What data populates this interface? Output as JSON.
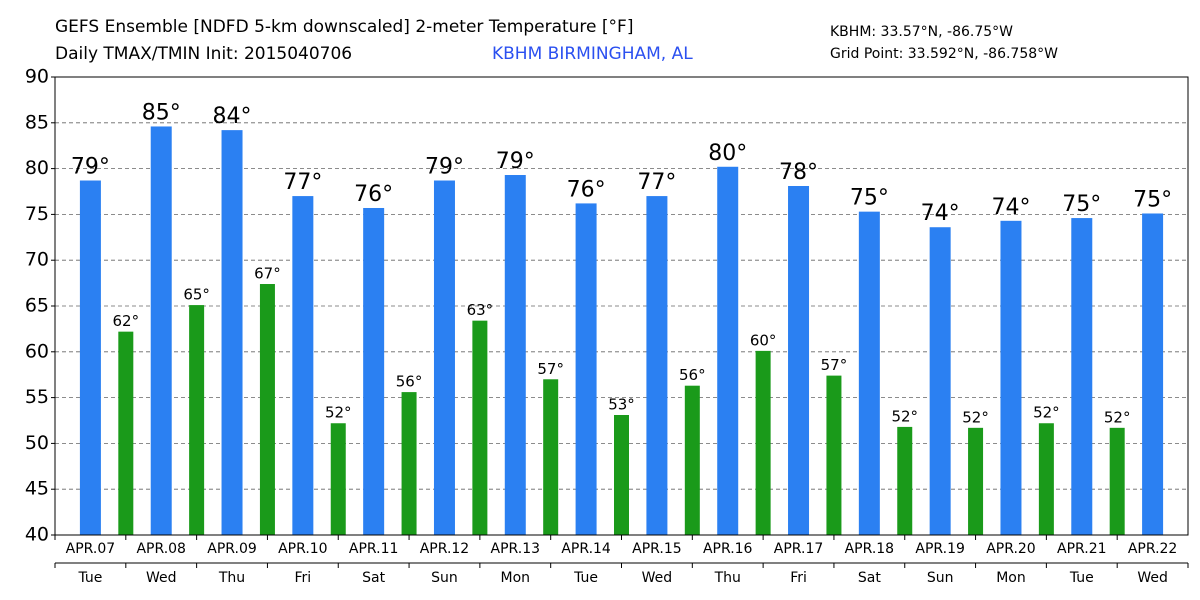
{
  "chart_data": {
    "type": "bar",
    "title": "GEFS Ensemble [NDFD 5-km downscaled] 2-meter Temperature [°F]",
    "subtitle": "Daily TMAX/TMIN Init: 2015040706",
    "location": "KBHM BIRMINGHAM, AL",
    "station_coords": "KBHM: 33.57°N, -86.75°W",
    "grid_point": "Grid Point: 33.592°N, -86.758°W",
    "categories": [
      "APR.07",
      "APR.08",
      "APR.09",
      "APR.10",
      "APR.11",
      "APR.12",
      "APR.13",
      "APR.14",
      "APR.15",
      "APR.16",
      "APR.17",
      "APR.18",
      "APR.19",
      "APR.20",
      "APR.21",
      "APR.22"
    ],
    "weekdays": [
      "Tue",
      "Wed",
      "Thu",
      "Fri",
      "Sat",
      "Sun",
      "Mon",
      "Tue",
      "Wed",
      "Thu",
      "Fri",
      "Sat",
      "Sun",
      "Mon",
      "Tue",
      "Wed"
    ],
    "series": [
      {
        "name": "TMAX",
        "color": "#2b80f2",
        "values": [
          78.7,
          84.6,
          84.2,
          77.0,
          75.7,
          78.7,
          79.3,
          76.2,
          77.0,
          80.2,
          78.1,
          75.3,
          73.6,
          74.3,
          74.6,
          75.1
        ],
        "value_labels": [
          "79°",
          "85°",
          "84°",
          "77°",
          "76°",
          "79°",
          "79°",
          "76°",
          "77°",
          "80°",
          "78°",
          "75°",
          "74°",
          "74°",
          "75°",
          "75°"
        ]
      },
      {
        "name": "TMIN",
        "color": "#1a9a1a",
        "values": [
          62.2,
          65.1,
          67.4,
          52.2,
          55.6,
          63.4,
          57.0,
          53.1,
          56.3,
          60.1,
          57.4,
          51.8,
          51.7,
          52.2,
          51.7,
          null
        ],
        "value_labels": [
          "62°",
          "65°",
          "67°",
          "52°",
          "56°",
          "63°",
          "57°",
          "53°",
          "56°",
          "60°",
          "57°",
          "52°",
          "52°",
          "52°",
          "52°",
          null
        ]
      }
    ],
    "ylim": [
      40,
      90
    ],
    "yticks": [
      40,
      45,
      50,
      55,
      60,
      65,
      70,
      75,
      80,
      85,
      90
    ],
    "grid": true
  }
}
